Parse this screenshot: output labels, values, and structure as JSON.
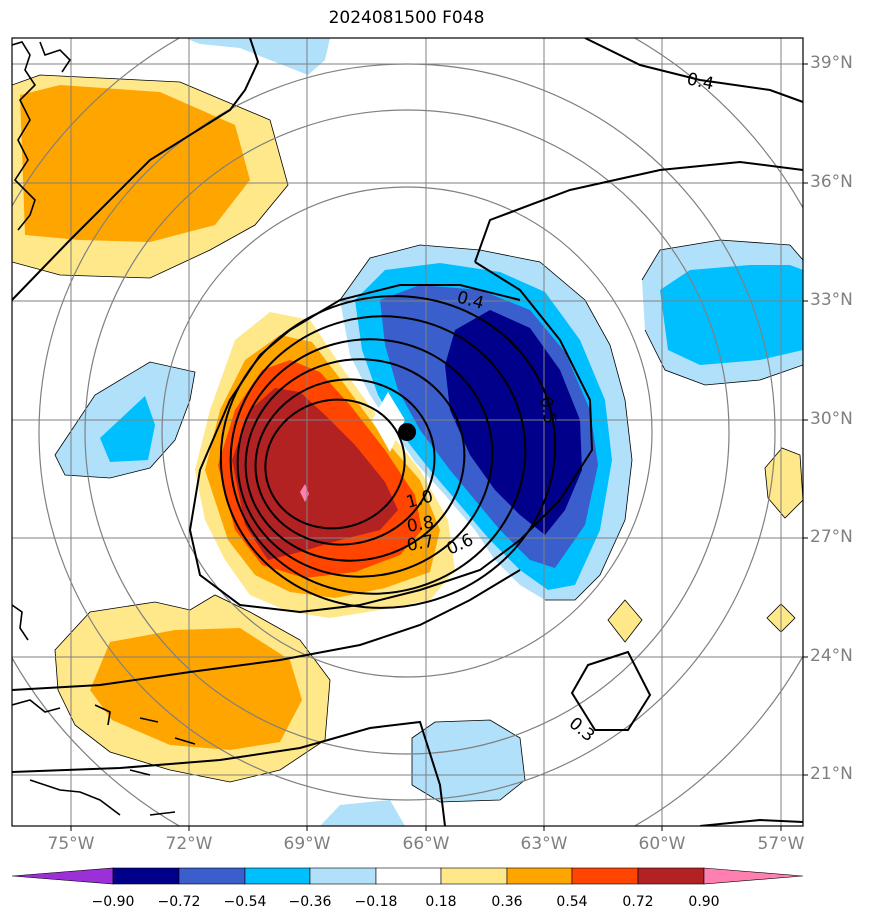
{
  "title": "2024081500 F048",
  "latitude_labels": [
    "39°N",
    "36°N",
    "33°N",
    "30°N",
    "27°N",
    "24°N",
    "21°N"
  ],
  "longitude_labels": [
    "75°W",
    "72°W",
    "69°W",
    "66°W",
    "63°W",
    "60°W",
    "57°W"
  ],
  "contour_labels": [
    "0.4",
    "0.4",
    "0.5",
    "1.0",
    "0.8",
    "0.7",
    "0.6",
    "0.3"
  ],
  "storm_center": {
    "lon": -66.4,
    "lat": 29.7
  },
  "colorbar": {
    "tick_labels": [
      "−0.90",
      "−0.72",
      "−0.54",
      "−0.36",
      "−0.18",
      "0.18",
      "0.36",
      "0.54",
      "0.72",
      "0.90"
    ],
    "colors": [
      "#9b30d9",
      "#00008b",
      "#3a5fcd",
      "#00bfff",
      "#b0e0fa",
      "#ffffff",
      "#ffe88a",
      "#ffa500",
      "#ff4500",
      "#b22222",
      "#ff7fb0"
    ]
  },
  "colors": {
    "grid": "#808080",
    "coast": "#000000",
    "contour": "#000000"
  }
}
